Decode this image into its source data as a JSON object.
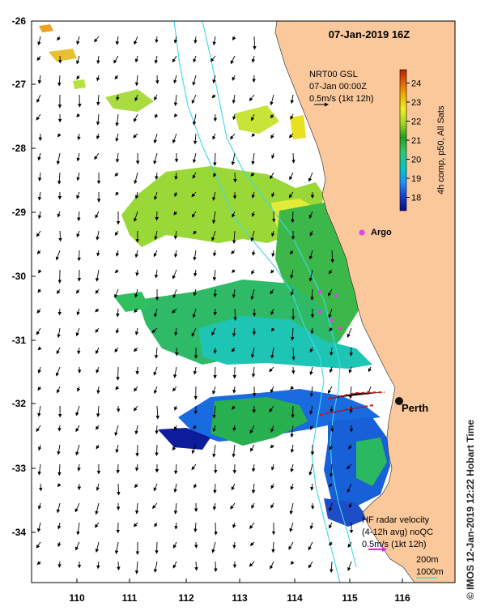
{
  "map": {
    "title": "07-Jan-2019 16Z",
    "x_ticks": [
      "110",
      "111",
      "112",
      "113",
      "114",
      "115",
      "116"
    ],
    "y_ticks": [
      "-26",
      "-27",
      "-28",
      "-29",
      "-30",
      "-31",
      "-32",
      "-33",
      "-34"
    ],
    "gsl_label": {
      "line1": "NRT00 GSL",
      "line2": "07-Jan 00:00Z",
      "line3": "0.5m/s (1kt 12h)"
    },
    "colorbar": {
      "ticks": [
        "18",
        "19",
        "20",
        "21",
        "22",
        "23",
        "24"
      ],
      "label": "4h comp, p50, All Sats",
      "min": 17.3,
      "max": 24.7,
      "colors": [
        "#0a0a80",
        "#1040d0",
        "#1e90ff",
        "#00c8c8",
        "#30c870",
        "#20a020",
        "#a0d820",
        "#f0f020",
        "#f0b000",
        "#e06010",
        "#c02000"
      ]
    },
    "argo": {
      "label": "Argo",
      "color": "#e040f0"
    },
    "city": {
      "label": "Perth"
    },
    "hf_radar": {
      "line1": "HF radar velocity",
      "line2": "(4-12h avg) noQC",
      "line3": "0.5m/s (1kt 12h)",
      "color": "#e020e0"
    },
    "isobaths": {
      "label1": "200m",
      "label2": "1000m",
      "color": "#40d8e8"
    },
    "land_color": "#fbc89b",
    "credit": "© IMOS 12-Jan-2019 12:22 Hobart Time"
  }
}
